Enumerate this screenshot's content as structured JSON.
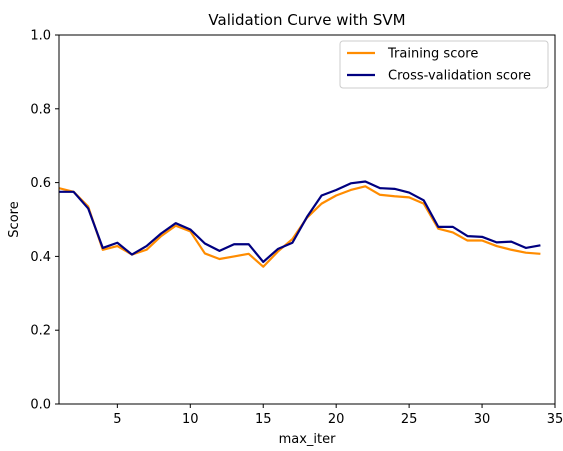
{
  "chart_data": {
    "type": "line",
    "title": "Validation Curve with SVM",
    "xlabel": "max_iter",
    "ylabel": "Score",
    "xlim": [
      1,
      35
    ],
    "ylim": [
      0.0,
      1.0
    ],
    "xticks": [
      5,
      10,
      15,
      20,
      25,
      30,
      35
    ],
    "xtick_labels": [
      "5",
      "10",
      "15",
      "20",
      "25",
      "30",
      "35"
    ],
    "yticks": [
      0.0,
      0.2,
      0.4,
      0.6,
      0.8,
      1.0
    ],
    "ytick_labels": [
      "0.0",
      "0.2",
      "0.4",
      "0.6",
      "0.8",
      "1.0"
    ],
    "grid": false,
    "legend_position": "top-right",
    "x": [
      1,
      2,
      3,
      4,
      5,
      6,
      7,
      8,
      9,
      10,
      11,
      12,
      13,
      14,
      15,
      16,
      17,
      18,
      19,
      20,
      21,
      22,
      23,
      24,
      25,
      26,
      27,
      28,
      29,
      30,
      31,
      32,
      33,
      34
    ],
    "series": [
      {
        "name": "Training score",
        "color": "#ff8c00",
        "values": [
          0.585,
          0.575,
          0.535,
          0.418,
          0.428,
          0.405,
          0.418,
          0.455,
          0.483,
          0.468,
          0.408,
          0.393,
          0.4,
          0.407,
          0.372,
          0.413,
          0.447,
          0.505,
          0.543,
          0.565,
          0.58,
          0.59,
          0.567,
          0.563,
          0.56,
          0.543,
          0.475,
          0.465,
          0.443,
          0.443,
          0.428,
          0.418,
          0.41,
          0.407
        ]
      },
      {
        "name": "Cross-validation score",
        "color": "#000080",
        "values": [
          0.575,
          0.575,
          0.53,
          0.423,
          0.437,
          0.405,
          0.428,
          0.462,
          0.49,
          0.473,
          0.435,
          0.415,
          0.433,
          0.433,
          0.385,
          0.42,
          0.437,
          0.507,
          0.565,
          0.58,
          0.598,
          0.603,
          0.585,
          0.583,
          0.573,
          0.552,
          0.48,
          0.48,
          0.455,
          0.453,
          0.438,
          0.44,
          0.423,
          0.43
        ]
      }
    ]
  }
}
